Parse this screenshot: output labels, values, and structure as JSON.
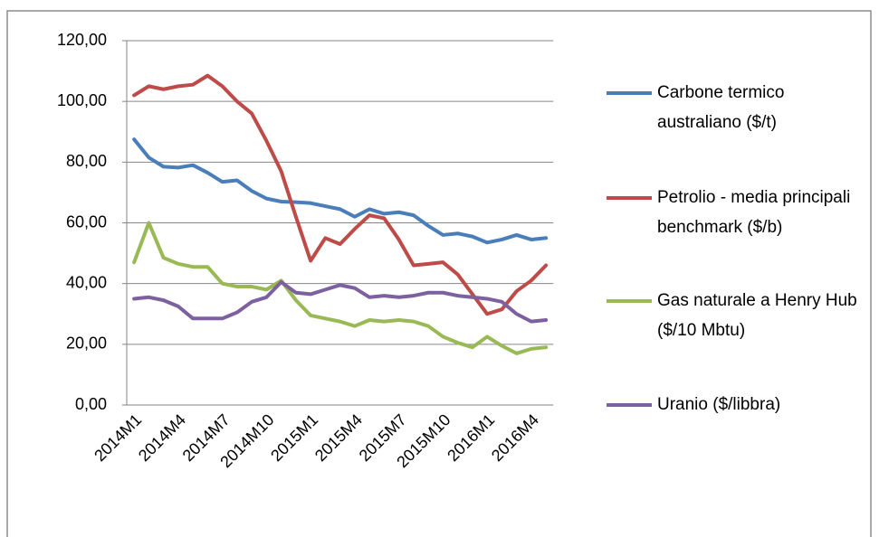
{
  "chart_data": {
    "type": "line",
    "categories": [
      "2014M1",
      null,
      null,
      "2014M4",
      null,
      null,
      "2014M7",
      null,
      null,
      "2014M10",
      null,
      null,
      "2015M1",
      null,
      null,
      "2015M4",
      null,
      null,
      "2015M7",
      null,
      null,
      "2015M10",
      null,
      null,
      "2016M1",
      null,
      null,
      "2016M4",
      null
    ],
    "series": [
      {
        "name": "Carbone termico australiano ($/t)",
        "color": "#4a7ebb",
        "values": [
          87.5,
          81.5,
          78.5,
          78.2,
          79,
          76.5,
          73.5,
          74,
          70.5,
          68,
          67,
          66.8,
          66.5,
          65.5,
          64.5,
          62,
          64.5,
          63,
          63.5,
          62.5,
          59,
          56,
          56.5,
          55.5,
          53.5,
          54.5,
          56,
          54.5,
          55
        ]
      },
      {
        "name": "Petrolio - media principali benchmark ($/b)",
        "color": "#be4b48",
        "values": [
          102,
          105,
          104,
          105,
          105.5,
          108.5,
          105,
          100,
          96,
          87,
          77,
          62,
          47.5,
          55,
          53,
          58,
          62.5,
          61.5,
          54.5,
          46,
          46.5,
          47,
          43,
          36.5,
          30,
          31.5,
          37.5,
          41,
          46
        ]
      },
      {
        "name": "Gas naturale a Henry Hub ($/10 Mbtu)",
        "color": "#98b954",
        "values": [
          47,
          60,
          48.5,
          46.5,
          45.5,
          45.5,
          40,
          39,
          39,
          38,
          41,
          34.5,
          29.5,
          28.5,
          27.5,
          26,
          28,
          27.5,
          28,
          27.5,
          26,
          22.5,
          20.5,
          19,
          22.5,
          19.5,
          17,
          18.5,
          19
        ]
      },
      {
        "name": "Uranio ($/libbra)",
        "color": "#7d60a0",
        "values": [
          35,
          35.5,
          34.5,
          32.5,
          28.5,
          28.5,
          28.5,
          30.5,
          34,
          35.5,
          40.5,
          37,
          36.5,
          38,
          39.5,
          38.5,
          35.5,
          36,
          35.5,
          36,
          37,
          37,
          36,
          35.5,
          35,
          34,
          30,
          27.5,
          28
        ]
      }
    ],
    "ylim": [
      0,
      120
    ],
    "yticks": [
      {
        "value": 0,
        "label": "0,00"
      },
      {
        "value": 20,
        "label": "20,00"
      },
      {
        "value": 40,
        "label": "40,00"
      },
      {
        "value": 60,
        "label": "60,00"
      },
      {
        "value": 80,
        "label": "80,00"
      },
      {
        "value": 100,
        "label": "100,00"
      },
      {
        "value": 120,
        "label": "120,00"
      }
    ],
    "grid": true,
    "legend": "right"
  }
}
